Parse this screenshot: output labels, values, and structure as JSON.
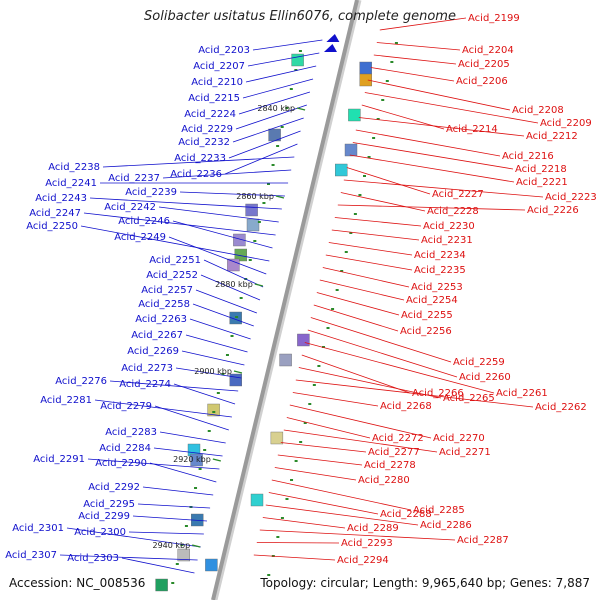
{
  "title": "Solibacter usitatus Ellin6076, complete genome",
  "accession": "Accession: NC_008536",
  "topology": "Topology: circular; Length: 9,965,640 bp; Genes: 7,887",
  "colors": {
    "forward": "#1010cc",
    "reverse": "#dd1111",
    "backbone": "#9a9a9a",
    "tick": "#2a8a2a"
  },
  "ticks": [
    "2840 kbp",
    "2860 kbp",
    "2880 kbp",
    "2900 kbp",
    "2920 kbp",
    "2940 kbp"
  ],
  "forward_genes": [
    "Acid_2203",
    "Acid_2207",
    "Acid_2210",
    "Acid_2215",
    "Acid_2224",
    "Acid_2229",
    "Acid_2232",
    "Acid_2233",
    "Acid_2236",
    "Acid_2238",
    "Acid_2237",
    "Acid_2241",
    "Acid_2239",
    "Acid_2243",
    "Acid_2242",
    "Acid_2247",
    "Acid_2246",
    "Acid_2250",
    "Acid_2249",
    "Acid_2251",
    "Acid_2252",
    "Acid_2257",
    "Acid_2258",
    "Acid_2263",
    "Acid_2267",
    "Acid_2269",
    "Acid_2273",
    "Acid_2276",
    "Acid_2274",
    "Acid_2281",
    "Acid_2279",
    "Acid_2283",
    "Acid_2284",
    "Acid_2291",
    "Acid_2290",
    "Acid_2292",
    "Acid_2295",
    "Acid_2299",
    "Acid_2300",
    "Acid_2301",
    "Acid_2307",
    "Acid_2303"
  ],
  "reverse_genes": [
    "Acid_2199",
    "Acid_2204",
    "Acid_2205",
    "Acid_2206",
    "Acid_2208",
    "Acid_2209",
    "Acid_2214",
    "Acid_2212",
    "Acid_2216",
    "Acid_2218",
    "Acid_2221",
    "Acid_2227",
    "Acid_2223",
    "Acid_2228",
    "Acid_2226",
    "Acid_2230",
    "Acid_2231",
    "Acid_2234",
    "Acid_2235",
    "Acid_2253",
    "Acid_2254",
    "Acid_2255",
    "Acid_2256",
    "Acid_2259",
    "Acid_2260",
    "Acid_2261",
    "Acid_2266",
    "Acid_2265",
    "Acid_2262",
    "Acid_2268",
    "Acid_2270",
    "Acid_2272",
    "Acid_2271",
    "Acid_2277",
    "Acid_2278",
    "Acid_2280",
    "Acid_2285",
    "Acid_2288",
    "Acid_2286",
    "Acid_2289",
    "Acid_2287",
    "Acid_2293",
    "Acid_2294"
  ]
}
